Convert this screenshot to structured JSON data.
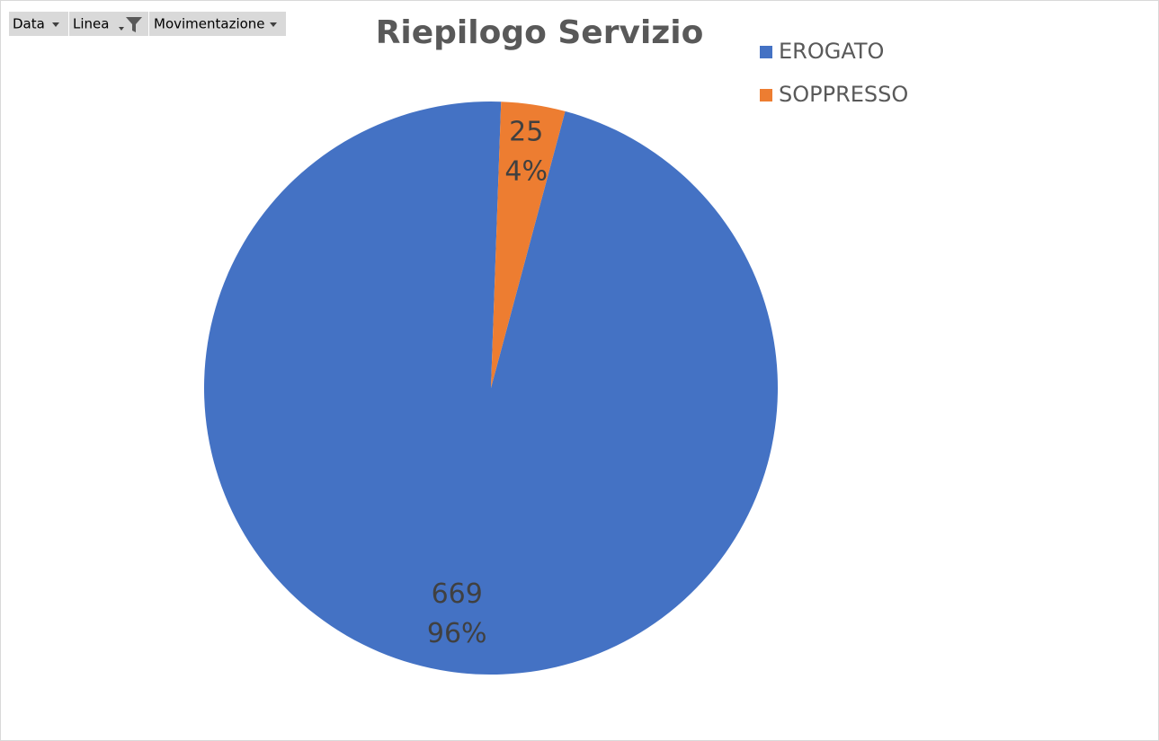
{
  "chart_data": {
    "type": "pie",
    "title": "Riepilogo Servizio",
    "field_buttons": [
      "Data",
      "Linea",
      "Movimentazione"
    ],
    "categories": [
      "EROGATO",
      "SOPPRESSO"
    ],
    "values": [
      669,
      25
    ],
    "percent_labels": [
      "96%",
      "4%"
    ],
    "colors": [
      "#4472c4",
      "#ed7d31"
    ],
    "legend": "top-right"
  }
}
